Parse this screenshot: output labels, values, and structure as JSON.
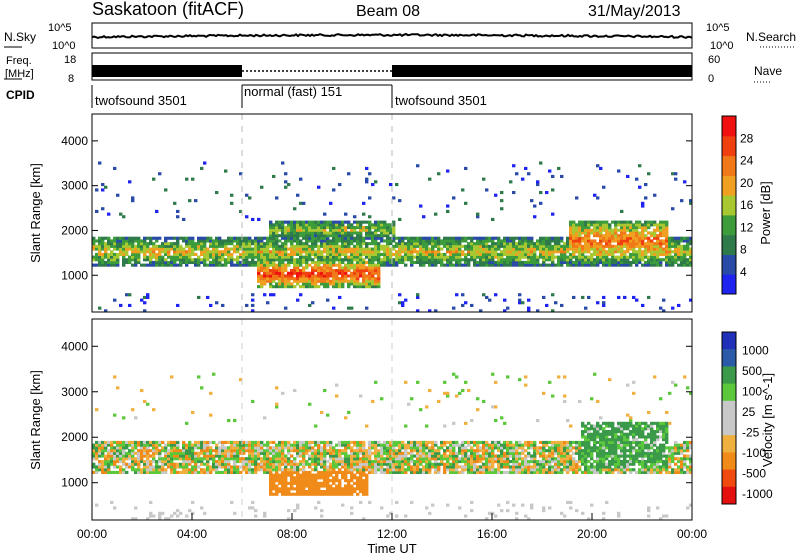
{
  "header": {
    "title": "Saskatoon (fitACF)",
    "beam": "Beam 08",
    "date": "31/May/2013"
  },
  "noise_panel": {
    "left_label": "N.Sky",
    "right_label": "N.Search",
    "left_ticks": [
      "10^5",
      "10^0"
    ],
    "right_ticks": [
      "10^5",
      "10^0"
    ]
  },
  "freq_panel": {
    "left_label_line1": "Freq.",
    "left_label_line2": "[MHz]",
    "left_ticks": [
      "18",
      "8"
    ],
    "right_label": "Nave",
    "right_ticks": [
      "60",
      "0"
    ]
  },
  "cpid_panel": {
    "label": "CPID",
    "segments": [
      {
        "label": "twofsound 3501",
        "start_h": 0,
        "end_h": 6
      },
      {
        "label": "normal (fast) 151",
        "start_h": 6,
        "end_h": 12
      },
      {
        "label": "twofsound 3501",
        "start_h": 12,
        "end_h": 24
      }
    ]
  },
  "colors": {
    "power": [
      "#1f23f0",
      "#2a4aa8",
      "#2f7a4a",
      "#3c9c3c",
      "#a8c832",
      "#f0a020",
      "#f07818",
      "#f04010",
      "#f01010"
    ],
    "velocity": [
      "#e41010",
      "#f04a10",
      "#f08a18",
      "#f0b040",
      "#c8c8c8",
      "#c8c8c8",
      "#5ac83a",
      "#3a9a4a",
      "#2a5aa8",
      "#2030b8"
    ],
    "ground_scatter": "#c8c8c8"
  },
  "chart_data": [
    {
      "type": "heatmap",
      "name": "power",
      "ylabel": "Slant Range [km]",
      "yticks": [
        1000,
        2000,
        3000,
        4000
      ],
      "ylim": [
        180,
        4600
      ],
      "xlim": [
        0,
        24
      ],
      "colorbar": {
        "label": "Power [dB]",
        "ticks": [
          "4",
          "8",
          "12",
          "16",
          "20",
          "24",
          "28"
        ],
        "range": [
          0,
          32
        ]
      },
      "segment_boundaries_h": [
        6,
        12
      ],
      "features": [
        {
          "desc": "main band",
          "t": [
            0,
            24
          ],
          "range_km": [
            1200,
            1800
          ],
          "level_db": 18
        },
        {
          "desc": "intense E region patch",
          "t": [
            6.5,
            11.5
          ],
          "range_km": [
            700,
            1300
          ],
          "level_db": 28
        },
        {
          "desc": "upper ionospheric band",
          "t": [
            7,
            12
          ],
          "range_km": [
            1800,
            2200
          ],
          "level_db": 16
        },
        {
          "desc": "late evening enhancement",
          "t": [
            19,
            23
          ],
          "range_km": [
            1300,
            2200
          ],
          "level_db": 24
        }
      ]
    },
    {
      "type": "heatmap",
      "name": "velocity",
      "xlabel": "Time UT",
      "xticks": [
        "00:00",
        "04:00",
        "08:00",
        "12:00",
        "16:00",
        "20:00",
        "00:00"
      ],
      "ylabel": "Slant Range [km]",
      "yticks": [
        1000,
        2000,
        3000,
        4000
      ],
      "ylim": [
        180,
        4600
      ],
      "xlim": [
        0,
        24
      ],
      "colorbar": {
        "label": "Velocity [m s^-1]",
        "ticks": [
          "1000",
          "500",
          "100",
          "25",
          "-25",
          "-100",
          "-500",
          "-1000"
        ]
      },
      "segment_boundaries_h": [
        6,
        12
      ],
      "features": [
        {
          "desc": "ground scatter band",
          "t": [
            0,
            24
          ],
          "range_km": [
            1200,
            1900
          ],
          "velocity": 0
        },
        {
          "desc": "westward/away flow patch",
          "t": [
            7,
            11
          ],
          "range_km": [
            700,
            1200
          ],
          "velocity": -250
        },
        {
          "desc": "late evening mixed flow",
          "t": [
            19.5,
            23
          ],
          "range_km": [
            1300,
            2300
          ],
          "velocity": 150
        }
      ]
    }
  ]
}
